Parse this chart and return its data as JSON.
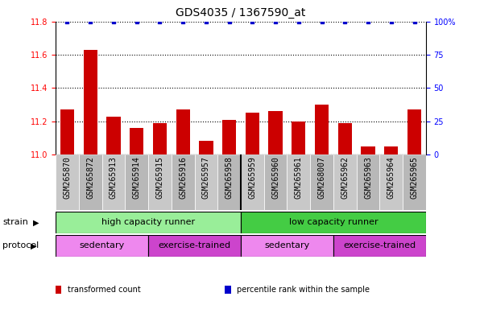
{
  "title": "GDS4035 / 1367590_at",
  "samples": [
    "GSM265870",
    "GSM265872",
    "GSM265913",
    "GSM265914",
    "GSM265915",
    "GSM265916",
    "GSM265957",
    "GSM265958",
    "GSM265959",
    "GSM265960",
    "GSM265961",
    "GSM268007",
    "GSM265962",
    "GSM265963",
    "GSM265964",
    "GSM265965"
  ],
  "bar_values": [
    11.27,
    11.63,
    11.23,
    11.16,
    11.19,
    11.27,
    11.08,
    11.21,
    11.25,
    11.26,
    11.2,
    11.3,
    11.19,
    11.05,
    11.05,
    11.27
  ],
  "percentile_values": [
    100,
    100,
    100,
    100,
    100,
    100,
    100,
    100,
    100,
    100,
    100,
    100,
    100,
    100,
    100,
    100
  ],
  "ylim_left": [
    11.0,
    11.8
  ],
  "ylim_right": [
    0,
    100
  ],
  "yticks_left": [
    11.0,
    11.2,
    11.4,
    11.6,
    11.8
  ],
  "yticks_right": [
    0,
    25,
    50,
    75,
    100
  ],
  "bar_color": "#cc0000",
  "percentile_color": "#0000cc",
  "grid_linestyle": ":",
  "grid_linewidth": 0.8,
  "strain_groups": [
    {
      "label": "high capacity runner",
      "start": 0,
      "end": 8,
      "color": "#99ee99"
    },
    {
      "label": "low capacity runner",
      "start": 8,
      "end": 16,
      "color": "#44cc44"
    }
  ],
  "protocol_groups": [
    {
      "label": "sedentary",
      "start": 0,
      "end": 4,
      "color": "#ee88ee"
    },
    {
      "label": "exercise-trained",
      "start": 4,
      "end": 8,
      "color": "#cc44cc"
    },
    {
      "label": "sedentary",
      "start": 8,
      "end": 12,
      "color": "#ee88ee"
    },
    {
      "label": "exercise-trained",
      "start": 12,
      "end": 16,
      "color": "#cc44cc"
    }
  ],
  "xtick_bg_color": "#cccccc",
  "strain_label": "strain",
  "protocol_label": "protocol",
  "legend_items": [
    {
      "color": "#cc0000",
      "label": "transformed count"
    },
    {
      "color": "#0000cc",
      "label": "percentile rank within the sample"
    }
  ],
  "title_fontsize": 10,
  "tick_fontsize": 7,
  "label_fontsize": 8,
  "bar_width": 0.6
}
